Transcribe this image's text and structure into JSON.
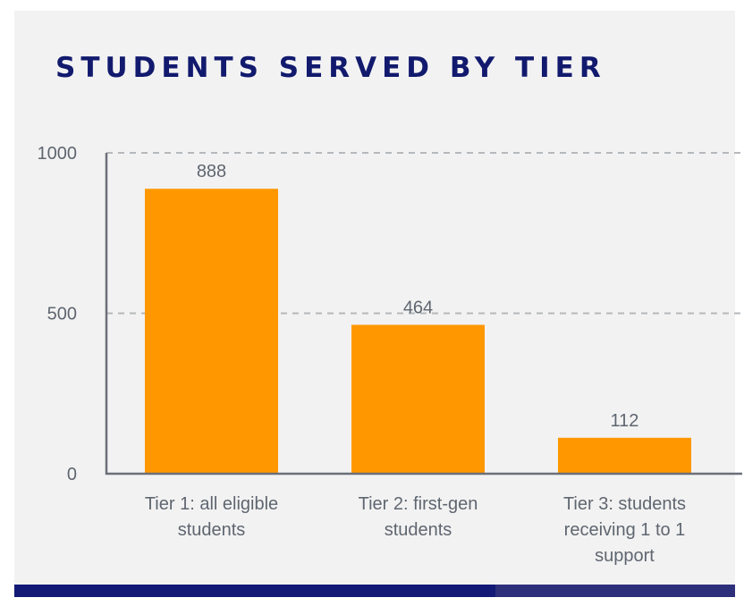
{
  "colors": {
    "background": "#f2f2f2",
    "title": "#121a6e",
    "bar": "#ff9800",
    "axis": "#6b6f78",
    "text": "#5f6670",
    "grid": "#b5b8bc",
    "footer_primary": "#121a75",
    "footer_secondary": "#2e2f7a"
  },
  "chart_data": {
    "type": "bar",
    "title": "STUDENTS SERVED BY TIER",
    "categories": [
      [
        "Tier 1: all eligible",
        "students"
      ],
      [
        "Tier 2: first-gen",
        "students"
      ],
      [
        "Tier 3: students",
        "receiving 1 to 1",
        "support"
      ]
    ],
    "values": [
      888,
      464,
      112
    ],
    "data_labels": [
      "888",
      "464",
      "112"
    ],
    "yticks": [
      0,
      500,
      1000
    ],
    "ylim": [
      0,
      1000
    ],
    "xlabel": "",
    "ylabel": "",
    "grid": true,
    "legend": "none"
  }
}
